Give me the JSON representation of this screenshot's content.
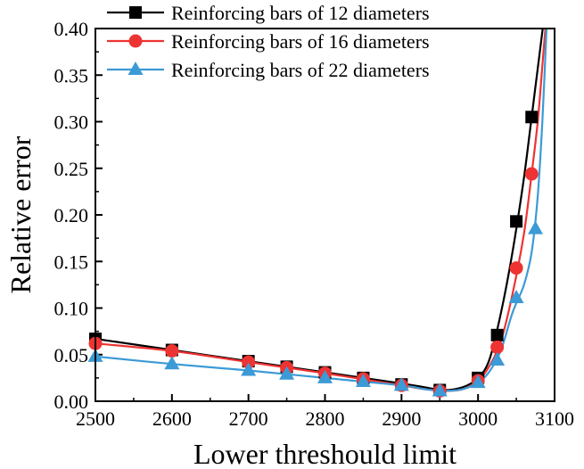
{
  "chart_data": {
    "type": "line",
    "title": "",
    "xlabel": "Lower threshould limit",
    "ylabel": "Relative error",
    "xlim": [
      2500,
      3100
    ],
    "ylim": [
      0.0,
      0.4
    ],
    "xticks": [
      2500,
      2600,
      2700,
      2800,
      2900,
      3000,
      3100
    ],
    "xtick_labels": [
      "2500",
      "2600",
      "2700",
      "2800",
      "2900",
      "3000",
      "3100"
    ],
    "yticks": [
      0.0,
      0.05,
      0.1,
      0.15,
      0.2,
      0.25,
      0.3,
      0.35,
      0.4
    ],
    "ytick_labels": [
      "0.00",
      "0.05",
      "0.10",
      "0.15",
      "0.20",
      "0.25",
      "0.30",
      "0.35",
      "0.40"
    ],
    "grid": false,
    "legend_position": "top-left",
    "series": [
      {
        "name": "Reinforcing bars of 12 diameters",
        "color": "#000000",
        "marker": "square",
        "x": [
          2500,
          2600,
          2700,
          2750,
          2800,
          2850,
          2900,
          2950,
          3000,
          3025,
          3050,
          3070
        ],
        "y": [
          0.067,
          0.055,
          0.043,
          0.037,
          0.031,
          0.025,
          0.018,
          0.012,
          0.025,
          0.071,
          0.193,
          0.305
        ],
        "curve_x": [
          2500,
          2600,
          2700,
          2800,
          2900,
          2930,
          2955,
          2980,
          3000,
          3015,
          3030,
          3045,
          3060,
          3070,
          3080,
          3086
        ],
        "curve_y": [
          0.067,
          0.055,
          0.043,
          0.031,
          0.019,
          0.015,
          0.012,
          0.015,
          0.025,
          0.045,
          0.095,
          0.16,
          0.24,
          0.305,
          0.37,
          0.41
        ]
      },
      {
        "name": "Reinforcing bars of 16 diameters",
        "color": "#ee3333",
        "marker": "circle",
        "x": [
          2500,
          2600,
          2700,
          2750,
          2800,
          2850,
          2900,
          2950,
          3000,
          3025,
          3050,
          3070
        ],
        "y": [
          0.062,
          0.054,
          0.042,
          0.036,
          0.03,
          0.024,
          0.017,
          0.011,
          0.022,
          0.058,
          0.143,
          0.244
        ],
        "curve_x": [
          2500,
          2600,
          2700,
          2800,
          2900,
          2930,
          2955,
          2980,
          3000,
          3015,
          3030,
          3045,
          3060,
          3070,
          3078,
          3084,
          3089
        ],
        "curve_y": [
          0.062,
          0.054,
          0.042,
          0.03,
          0.017,
          0.013,
          0.011,
          0.013,
          0.022,
          0.038,
          0.065,
          0.115,
          0.18,
          0.244,
          0.3,
          0.36,
          0.41
        ]
      },
      {
        "name": "Reinforcing bars of 22 diameters",
        "color": "#3c9ad6",
        "marker": "triangle",
        "x": [
          2500,
          2600,
          2700,
          2750,
          2800,
          2850,
          2900,
          2950,
          3000,
          3025,
          3050,
          3075
        ],
        "y": [
          0.048,
          0.04,
          0.033,
          0.029,
          0.025,
          0.021,
          0.017,
          0.011,
          0.02,
          0.044,
          0.111,
          0.185
        ],
        "curve_x": [
          2500,
          2600,
          2700,
          2800,
          2900,
          2930,
          2955,
          2980,
          3000,
          3015,
          3030,
          3045,
          3060,
          3070,
          3078,
          3084,
          3090
        ],
        "curve_y": [
          0.048,
          0.04,
          0.033,
          0.025,
          0.017,
          0.013,
          0.011,
          0.013,
          0.02,
          0.032,
          0.055,
          0.095,
          0.125,
          0.16,
          0.22,
          0.3,
          0.41
        ]
      }
    ]
  }
}
